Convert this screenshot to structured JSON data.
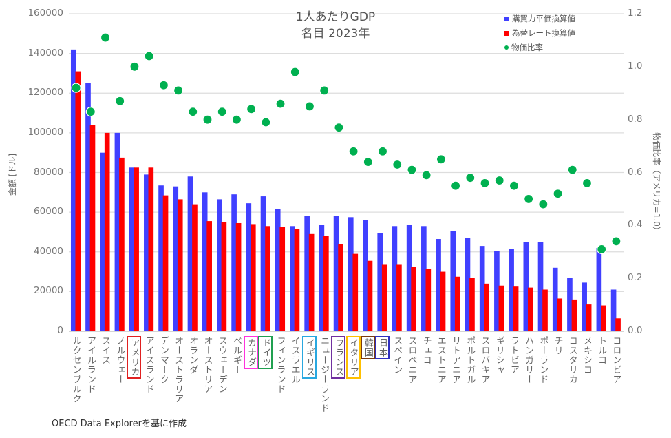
{
  "chart_data": {
    "type": "bar",
    "title": "1人あたりGDP",
    "subtitle": "名目 2023年",
    "ylabel": "金額 [ドル]",
    "y2label": "物価比率（アメリカ=1.0）",
    "ylim": [
      0,
      160000
    ],
    "y2lim": [
      0,
      1.2
    ],
    "yticks": [
      "0",
      "20000",
      "40000",
      "60000",
      "80000",
      "100000",
      "120000",
      "140000",
      "160000"
    ],
    "y2ticks": [
      "0.0",
      "0.2",
      "0.4",
      "0.6",
      "0.8",
      "1.0",
      "1.2"
    ],
    "grid": true,
    "legend_position": "top-right",
    "categories": [
      "ルクセンブルク",
      "アイルランド",
      "スイス",
      "ノルウェー",
      "アメリカ",
      "アイスランド",
      "デンマーク",
      "オーストラリア",
      "オランダ",
      "オーストリア",
      "スウェーデン",
      "ベルギー",
      "カナダ",
      "ドイツ",
      "フィンランド",
      "イスラエル",
      "イギリス",
      "ニュージーランド",
      "フランス",
      "イタリア",
      "韓国",
      "日本",
      "スペイン",
      "スロベニア",
      "チェコ",
      "エストニア",
      "リトアニア",
      "ポルトガル",
      "スロバキア",
      "ギリシャ",
      "ラトビア",
      "ハンガリー",
      "ポーランド",
      "チリ",
      "コスタリカ",
      "メキシコ",
      "トルコ",
      "コロンビア"
    ],
    "highlighted": {
      "アメリカ": "#e02020",
      "カナダ": "#ff33dd",
      "ドイツ": "#20a050",
      "イギリス": "#29a8e0",
      "フランス": "#7030a0",
      "イタリア": "#ffc000",
      "韓国": "#7a3a10",
      "日本": "#3030c0"
    },
    "series": [
      {
        "name": "購買力平価換算値",
        "type": "bar",
        "axis": "left",
        "color": "#4040ff",
        "values": [
          142000,
          125000,
          90000,
          100000,
          82500,
          79000,
          73500,
          73000,
          78000,
          70000,
          66500,
          69000,
          64500,
          68000,
          61500,
          53000,
          58000,
          53500,
          58000,
          57500,
          56000,
          49500,
          53000,
          53500,
          53000,
          46500,
          50500,
          47000,
          43000,
          40500,
          41500,
          45000,
          45000,
          32000,
          27000,
          24500,
          42000,
          21000
        ]
      },
      {
        "name": "為替レート換算値",
        "type": "bar",
        "axis": "left",
        "color": "#ff0000",
        "values": [
          131000,
          104000,
          100000,
          87500,
          82500,
          82500,
          68500,
          66500,
          64000,
          55500,
          55000,
          54500,
          54000,
          53000,
          52500,
          51500,
          49000,
          48000,
          44000,
          39000,
          35500,
          33500,
          33500,
          32500,
          31500,
          30000,
          27500,
          27000,
          24000,
          23000,
          22500,
          22000,
          21000,
          16500,
          16000,
          13500,
          13000,
          6500
        ]
      },
      {
        "name": "物価比率",
        "type": "scatter",
        "axis": "right",
        "color": "#00b050",
        "values": [
          0.92,
          0.83,
          1.11,
          0.87,
          1.0,
          1.04,
          0.93,
          0.91,
          0.83,
          0.8,
          0.83,
          0.8,
          0.84,
          0.79,
          0.86,
          0.98,
          0.85,
          0.91,
          0.77,
          0.68,
          0.64,
          0.68,
          0.63,
          0.61,
          0.59,
          0.65,
          0.55,
          0.58,
          0.56,
          0.57,
          0.55,
          0.5,
          0.48,
          0.52,
          0.61,
          0.56,
          0.31,
          0.34
        ]
      }
    ]
  },
  "footer": "OECD Data Explorerを基に作成"
}
